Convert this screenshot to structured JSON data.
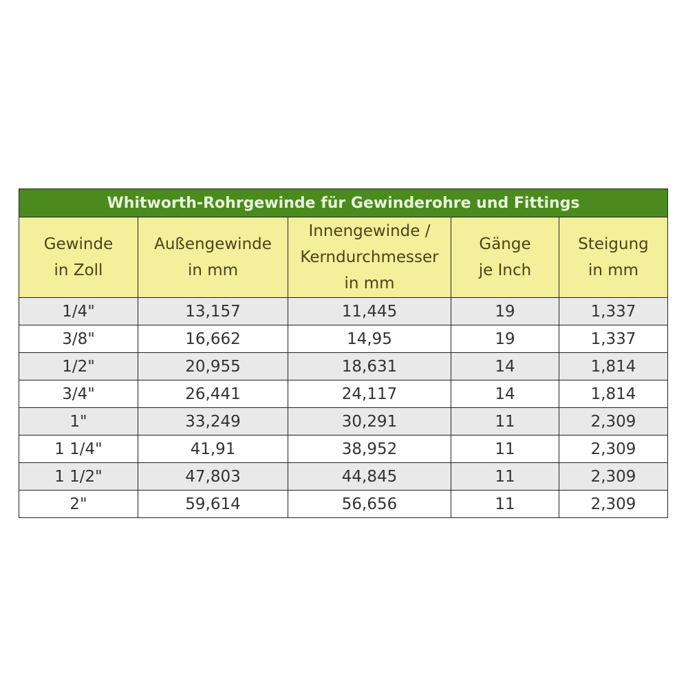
{
  "title": "Whitworth-Rohrgewinde für Gewinderohre und Fittings",
  "columns": [
    [
      "Gewinde",
      "in Zoll"
    ],
    [
      "Außengewinde",
      "in mm"
    ],
    [
      "Innengewinde /",
      "Kerndurchmesser",
      "in mm"
    ],
    [
      "Gänge",
      "je Inch"
    ],
    [
      "Steigung",
      "in mm"
    ]
  ],
  "rows": [
    [
      "1/4\"",
      "13,157",
      "11,445",
      "19",
      "1,337"
    ],
    [
      "3/8\"",
      "16,662",
      "14,95",
      "19",
      "1,337"
    ],
    [
      "1/2\"",
      "20,955",
      "18,631",
      "14",
      "1,814"
    ],
    [
      "3/4\"",
      "26,441",
      "24,117",
      "14",
      "1,814"
    ],
    [
      "1\"",
      "33,249",
      "30,291",
      "11",
      "2,309"
    ],
    [
      "1 1/4\"",
      "41,91",
      "38,952",
      "11",
      "2,309"
    ],
    [
      "1 1/2\"",
      "47,803",
      "44,845",
      "11",
      "2,309"
    ],
    [
      "2\"",
      "59,614",
      "56,656",
      "11",
      "2,309"
    ]
  ],
  "colors": {
    "title_bg": "#4b8a1e",
    "header_bg": "#f3ef9a",
    "row_alt_bg": "#e9e9e9"
  }
}
